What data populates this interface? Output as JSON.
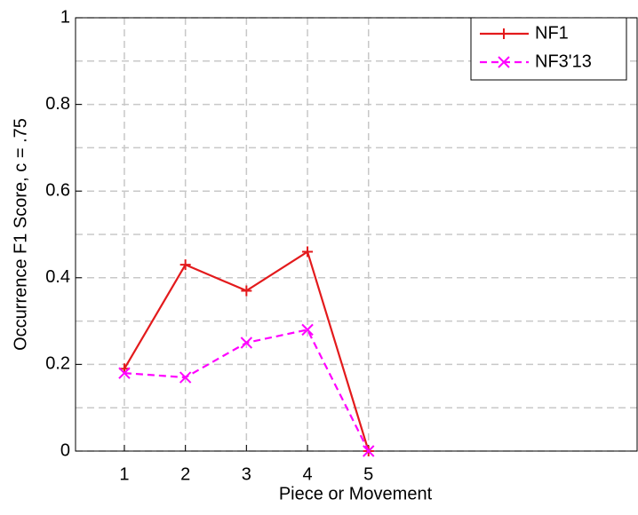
{
  "chart_data": {
    "type": "line",
    "x_label": "Piece or Movement",
    "y_label": "Occurrence F1 Score, c = .75",
    "x": [
      1,
      2,
      3,
      4,
      5
    ],
    "series": [
      {
        "name": "NF1",
        "color": "#e31a1c",
        "dash": "solid",
        "marker": "plus",
        "values": [
          0.19,
          0.43,
          0.37,
          0.46,
          0
        ]
      },
      {
        "name": "NF3'13",
        "color": "#ff00ff",
        "dash": "dashed",
        "marker": "cross",
        "values": [
          0.18,
          0.17,
          0.25,
          0.28,
          0
        ]
      }
    ],
    "xlim": [
      0.2,
      9.4
    ],
    "xticks": [
      1,
      2,
      3,
      4,
      5
    ],
    "ylim": [
      0,
      1
    ],
    "yticks": [
      0,
      0.2,
      0.4,
      0.6,
      0.8,
      1
    ],
    "y_minor_ticks": [
      0.1,
      0.3,
      0.5,
      0.7,
      0.9
    ],
    "grid": true,
    "legend": "upper-right"
  }
}
